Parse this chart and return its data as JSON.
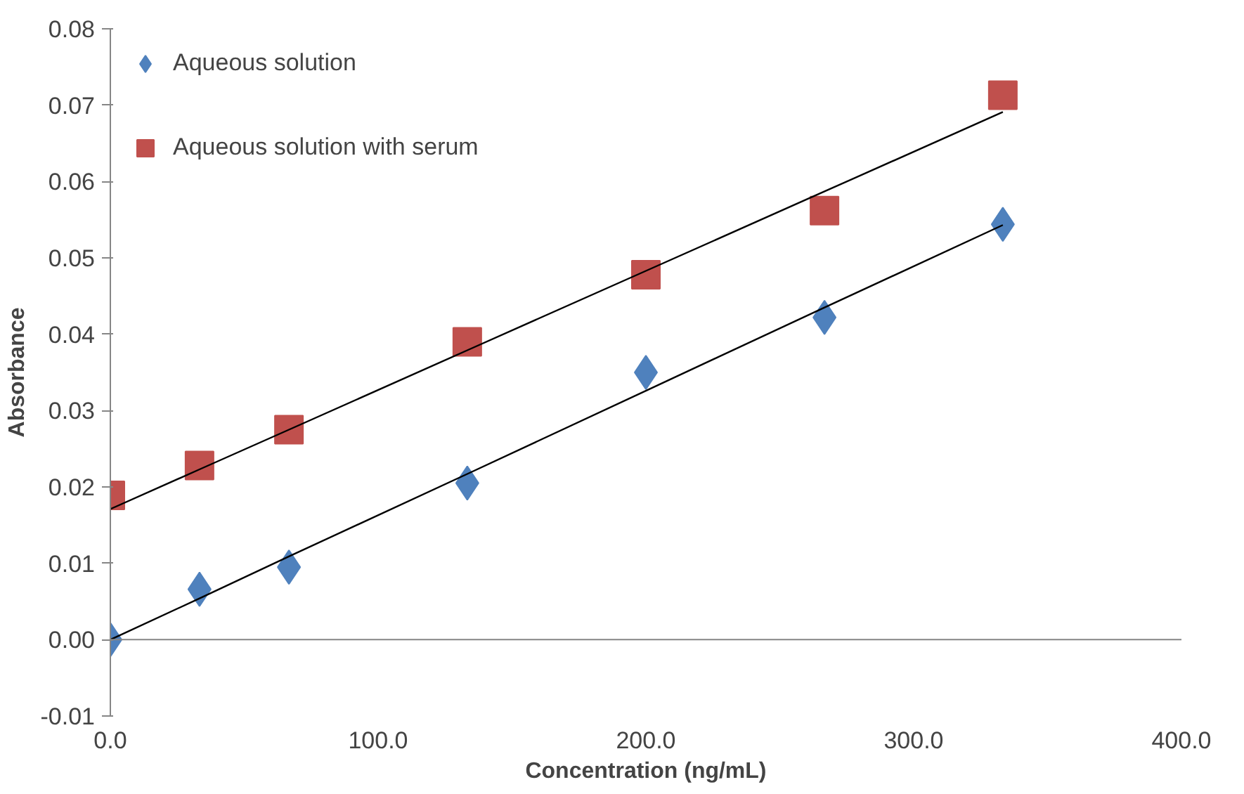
{
  "chart_data": {
    "type": "scatter",
    "xlabel": "Concentration (ng/mL)",
    "ylabel": "Absorbance",
    "xlim": [
      0,
      400
    ],
    "xticks": [
      {
        "value": 0,
        "label": "0.0"
      },
      {
        "value": 100,
        "label": "100.0"
      },
      {
        "value": 200,
        "label": "200.0"
      },
      {
        "value": 300,
        "label": "300.0"
      },
      {
        "value": 400,
        "label": "400.0"
      }
    ],
    "ylim": [
      -0.01,
      0.08
    ],
    "yticks": [
      {
        "value": -0.01,
        "label": "-0.01"
      },
      {
        "value": 0,
        "label": "0.00"
      },
      {
        "value": 0.01,
        "label": "0.01"
      },
      {
        "value": 0.02,
        "label": "0.02"
      },
      {
        "value": 0.03,
        "label": "0.03"
      },
      {
        "value": 0.04,
        "label": "0.04"
      },
      {
        "value": 0.05,
        "label": "0.05"
      },
      {
        "value": 0.06,
        "label": "0.06"
      },
      {
        "value": 0.07,
        "label": "0.07"
      },
      {
        "value": 0.08,
        "label": "0.08"
      }
    ],
    "grid": false,
    "legend": "top left",
    "ref_lines": [
      {
        "axis": "y",
        "value": 0,
        "color": "#868686"
      }
    ],
    "x": [
      0,
      33.3,
      66.7,
      133.3,
      200,
      266.7,
      333.3
    ],
    "series": [
      {
        "name": "Aqueous solution",
        "color": "#4f81bd",
        "marker": "diamond",
        "values": [
          0.0,
          0.0066,
          0.0095,
          0.0205,
          0.035,
          0.0422,
          0.0544
        ]
      },
      {
        "name": "Aqueous solution with serum",
        "color": "#c0504d",
        "marker": "square",
        "values": [
          0.0189,
          0.0228,
          0.0275,
          0.039,
          0.0478,
          0.0562,
          0.0713
        ]
      },
      {
        "type": "line",
        "color": "#000000",
        "marker": "none",
        "values": [
          0.0,
          0.0054,
          0.0109,
          0.0217,
          0.0326,
          0.0435,
          0.0543
        ]
      },
      {
        "type": "line",
        "color": "#000000",
        "marker": "none",
        "values": [
          0.0171,
          0.0223,
          0.0275,
          0.0379,
          0.0483,
          0.0587,
          0.0691
        ]
      }
    ]
  }
}
